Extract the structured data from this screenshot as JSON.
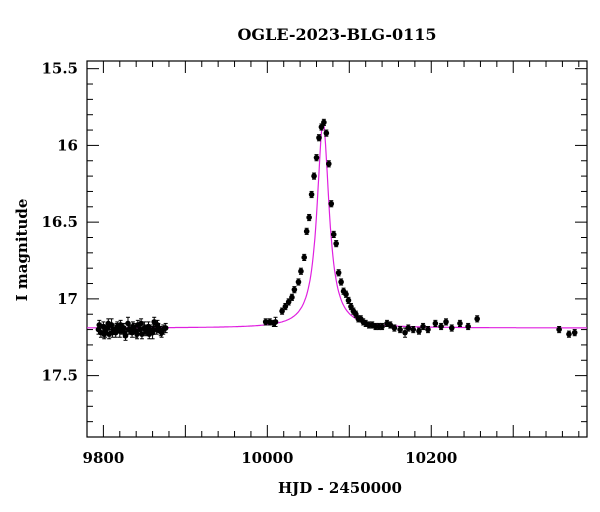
{
  "chart_data": {
    "type": "scatter",
    "title": "OGLE-2023-BLG-0115",
    "xlabel": "HJD - 2450000",
    "ylabel": "I magnitude",
    "xlim": [
      9780,
      10390
    ],
    "ylim": [
      17.9,
      15.45
    ],
    "y_inverted": true,
    "xticks": [
      9800,
      10000,
      10200
    ],
    "yticks": [
      15.5,
      16,
      16.5,
      17,
      17.5
    ],
    "xtick_labels": [
      "9800",
      "10000",
      "10200"
    ],
    "ytick_labels": [
      "15.5",
      "16",
      "16.5",
      "17",
      "17.5"
    ],
    "grid": false,
    "colors": {
      "points": "#000000",
      "model": "#e020e0"
    },
    "model": {
      "t0": 10068,
      "baseline_mag": 17.19,
      "peak_mag": 15.85,
      "tE": 8.8
    },
    "series": [
      {
        "x": [
          9794,
          9797,
          9800,
          9802,
          9805,
          9807,
          9810,
          9812,
          9815,
          9817,
          9820,
          9822,
          9825,
          9827,
          9830,
          9832,
          9835,
          9837,
          9840,
          9842,
          9845,
          9847,
          9850,
          9852,
          9855,
          9857,
          9860,
          9862,
          9865,
          9867,
          9870,
          9873,
          9876,
          9795,
          9801,
          9806,
          9811,
          9816,
          9821,
          9826,
          9831,
          9836,
          9841,
          9846,
          9851,
          9856,
          9861,
          9866,
          9871
        ],
        "y": [
          17.2,
          17.22,
          17.18,
          17.21,
          17.19,
          17.23,
          17.17,
          17.2,
          17.22,
          17.18,
          17.21,
          17.2,
          17.19,
          17.24,
          17.16,
          17.2,
          17.22,
          17.19,
          17.21,
          17.17,
          17.2,
          17.23,
          17.19,
          17.21,
          17.18,
          17.2,
          17.22,
          17.15,
          17.2,
          17.19,
          17.21,
          17.2,
          17.19,
          17.17,
          17.23,
          17.16,
          17.22,
          17.19,
          17.17,
          17.22,
          17.2,
          17.18,
          17.23,
          17.16,
          17.2,
          17.23,
          17.2,
          17.17,
          17.22
        ],
        "yerr": [
          0.03,
          0.03,
          0.03,
          0.04,
          0.03,
          0.03,
          0.04,
          0.03,
          0.03,
          0.03,
          0.04,
          0.03,
          0.03,
          0.03,
          0.04,
          0.03,
          0.03,
          0.03,
          0.04,
          0.03,
          0.03,
          0.03,
          0.04,
          0.03,
          0.03,
          0.03,
          0.04,
          0.03,
          0.03,
          0.03,
          0.03,
          0.03,
          0.03,
          0.03,
          0.03,
          0.03,
          0.03,
          0.03,
          0.03,
          0.03,
          0.03,
          0.03,
          0.03,
          0.03,
          0.03,
          0.03,
          0.03,
          0.03,
          0.03
        ]
      },
      {
        "x": [
          9998,
          10003,
          10008,
          10010,
          10018,
          10022,
          10026,
          10030,
          10033,
          10038,
          10041,
          10045,
          10048,
          10051,
          10054,
          10057,
          10060,
          10063,
          10066,
          10069,
          10072,
          10075,
          10078,
          10081,
          10084,
          10087,
          10090,
          10093,
          10096,
          10099,
          10102,
          10105,
          10108,
          10111,
          10114,
          10117,
          10120,
          10124,
          10128,
          10132,
          10136,
          10140,
          10146,
          10150,
          10155,
          10162,
          10168,
          10172,
          10178,
          10185,
          10190,
          10196,
          10205,
          10212,
          10218,
          10225,
          10235,
          10245,
          10256,
          10356,
          10368,
          10375
        ],
        "y": [
          17.15,
          17.15,
          17.16,
          17.15,
          17.08,
          17.05,
          17.02,
          16.99,
          16.94,
          16.89,
          16.82,
          16.73,
          16.56,
          16.47,
          16.32,
          16.2,
          16.08,
          15.95,
          15.88,
          15.85,
          15.92,
          16.12,
          16.38,
          16.58,
          16.64,
          16.83,
          16.89,
          16.95,
          16.97,
          17.01,
          17.05,
          17.08,
          17.1,
          17.13,
          17.13,
          17.15,
          17.16,
          17.17,
          17.17,
          17.18,
          17.18,
          17.18,
          17.16,
          17.17,
          17.19,
          17.2,
          17.22,
          17.19,
          17.2,
          17.21,
          17.18,
          17.2,
          17.16,
          17.18,
          17.15,
          17.19,
          17.16,
          17.18,
          17.13,
          17.2,
          17.23,
          17.22
        ],
        "yerr": [
          0.02,
          0.02,
          0.02,
          0.03,
          0.02,
          0.02,
          0.02,
          0.02,
          0.02,
          0.02,
          0.02,
          0.02,
          0.02,
          0.02,
          0.02,
          0.02,
          0.02,
          0.02,
          0.02,
          0.02,
          0.02,
          0.02,
          0.02,
          0.02,
          0.02,
          0.02,
          0.02,
          0.02,
          0.02,
          0.02,
          0.02,
          0.02,
          0.02,
          0.02,
          0.02,
          0.02,
          0.02,
          0.02,
          0.02,
          0.02,
          0.02,
          0.02,
          0.02,
          0.02,
          0.02,
          0.02,
          0.03,
          0.02,
          0.02,
          0.02,
          0.02,
          0.02,
          0.02,
          0.02,
          0.02,
          0.02,
          0.02,
          0.02,
          0.02,
          0.02,
          0.02,
          0.02
        ]
      }
    ]
  }
}
